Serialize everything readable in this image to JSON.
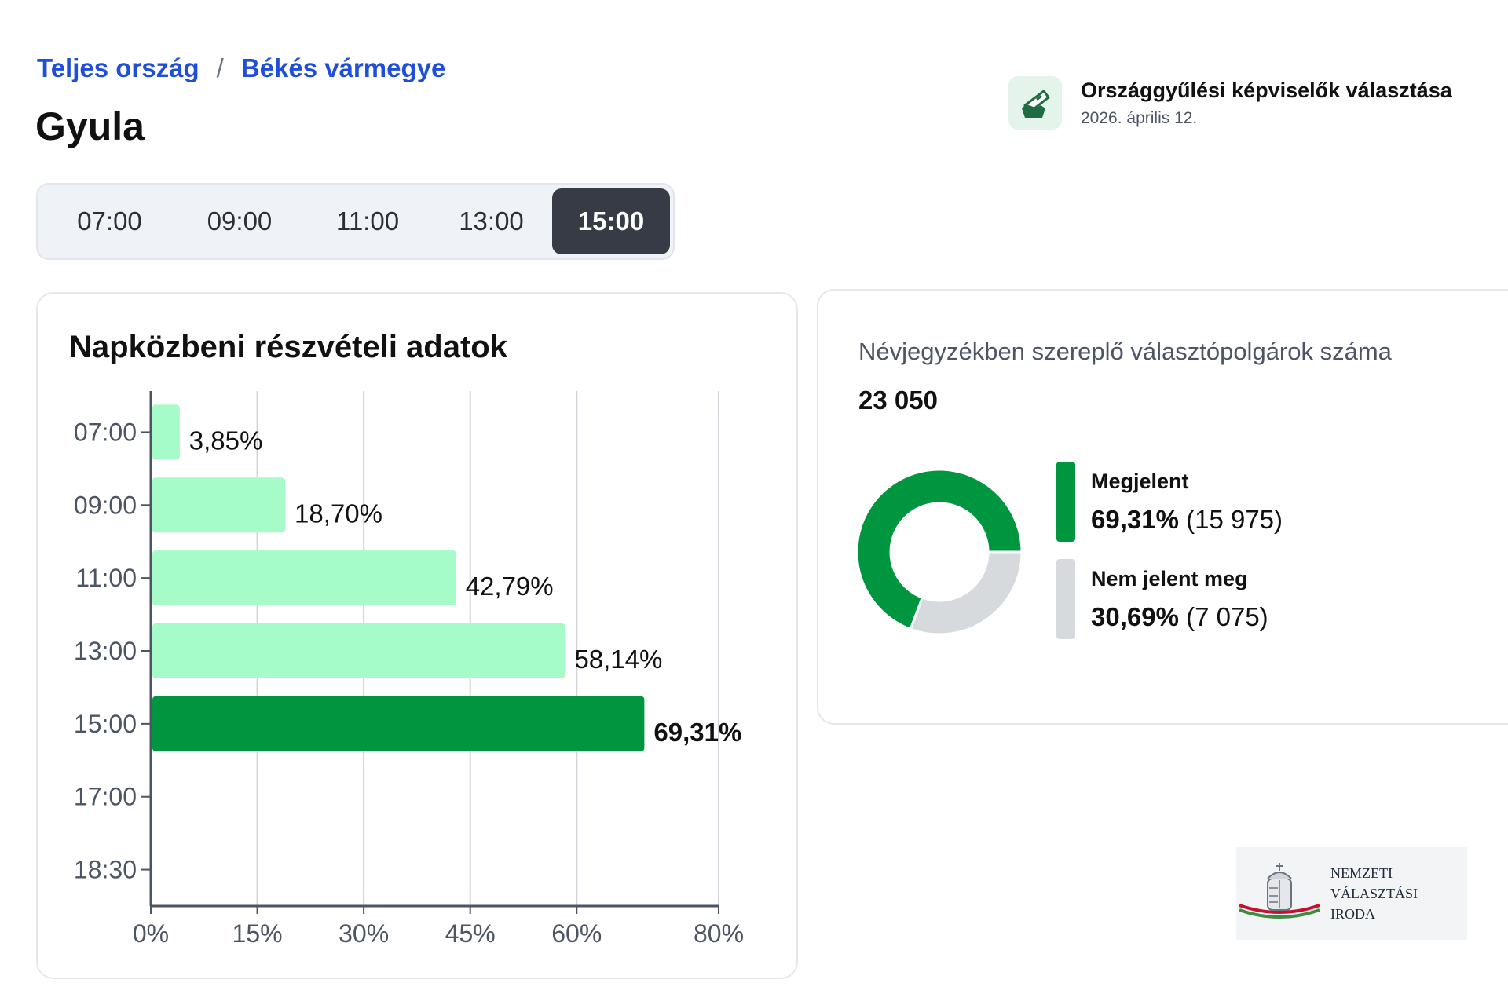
{
  "breadcrumb": {
    "root": "Teljes ország",
    "separator": "/",
    "county": "Békés vármegye"
  },
  "page_title": "Gyula",
  "election": {
    "title": "Országgyűlési képviselők választása",
    "date": "2026. április 12.",
    "icon": "ballot-box-icon"
  },
  "time_tabs": [
    {
      "label": "07:00",
      "active": false
    },
    {
      "label": "09:00",
      "active": false
    },
    {
      "label": "11:00",
      "active": false
    },
    {
      "label": "13:00",
      "active": false
    },
    {
      "label": "15:00",
      "active": true
    }
  ],
  "turnout_card": {
    "title": "Napközbeni részvételi adatok"
  },
  "chart_data": {
    "type": "bar",
    "orientation": "horizontal",
    "categories": [
      "07:00",
      "09:00",
      "11:00",
      "13:00",
      "15:00",
      "17:00",
      "18:30"
    ],
    "values": [
      3.85,
      18.7,
      42.79,
      58.14,
      69.31,
      null,
      null
    ],
    "value_labels": [
      "3,85%",
      "18,70%",
      "42,79%",
      "58,14%",
      "69,31%",
      "",
      ""
    ],
    "highlight_index": 4,
    "x_ticks": [
      0,
      15,
      30,
      45,
      60,
      80
    ],
    "x_tick_labels": [
      "0%",
      "15%",
      "30%",
      "45%",
      "60%",
      "80%"
    ],
    "xlim": [
      0,
      80
    ],
    "grid": true,
    "colors": {
      "bar": "#a6fcc8",
      "highlight": "#00963f",
      "grid": "#d1d5db",
      "axis": "#4b5563"
    }
  },
  "registered_card": {
    "label": "Névjegyzékben szereplő választópolgárok száma",
    "value": "23 050",
    "donut": {
      "type": "pie",
      "slices": [
        {
          "name": "Megjelent",
          "value": 69.31,
          "pct_label": "69,31%",
          "count_label": "(15 975)",
          "color": "#00963f"
        },
        {
          "name": "Nem jelent meg",
          "value": 30.69,
          "pct_label": "30,69%",
          "count_label": "(7 075)",
          "color": "#d6dadd"
        }
      ]
    }
  },
  "footer_logo": {
    "lines": [
      "NEMZETI",
      "VÁLASZTÁSI",
      "IRODA"
    ],
    "icon": "hungarian-coat-of-arms-icon"
  }
}
